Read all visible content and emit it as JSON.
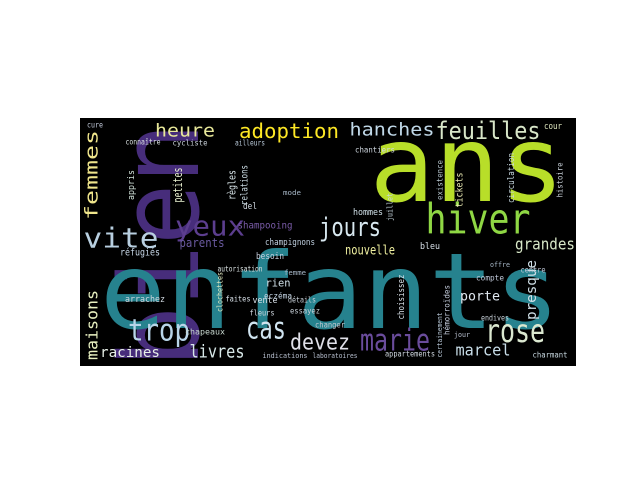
{
  "words": [
    "bien",
    "ans",
    "enfants",
    "hiver",
    "adoption",
    "heure",
    "hanches",
    "feuilles",
    "femmes",
    "yeux",
    "vite",
    "jours",
    "cas",
    "trop",
    "marie",
    "rose",
    "devez",
    "livres",
    "maisons",
    "racines",
    "marcel",
    "grandes",
    "presque",
    "nouvelle",
    "porte",
    "parents",
    "réfugiés",
    "shampooing",
    "champignons",
    "rien",
    "vente",
    "clochettes",
    "arrachez",
    "chapeaux",
    "petites",
    "règles",
    "relations",
    "appris",
    "cycliste",
    "connaître",
    "ailleurs",
    "hommes",
    "choisissez",
    "tickets",
    "circulation",
    "existence",
    "histoire",
    "chantiers",
    "cour",
    "bleu",
    "hémorroïdes",
    "compte",
    "appartements",
    "charmant",
    "besoin",
    "autorisation",
    "faites",
    "eczéma",
    "fleurs",
    "essayez",
    "changer",
    "indications",
    "laboratoires",
    "femme",
    "del",
    "mode",
    "détails",
    "cure",
    "juillet",
    "centre",
    "endives",
    "jour",
    "certainement",
    "offre"
  ]
}
